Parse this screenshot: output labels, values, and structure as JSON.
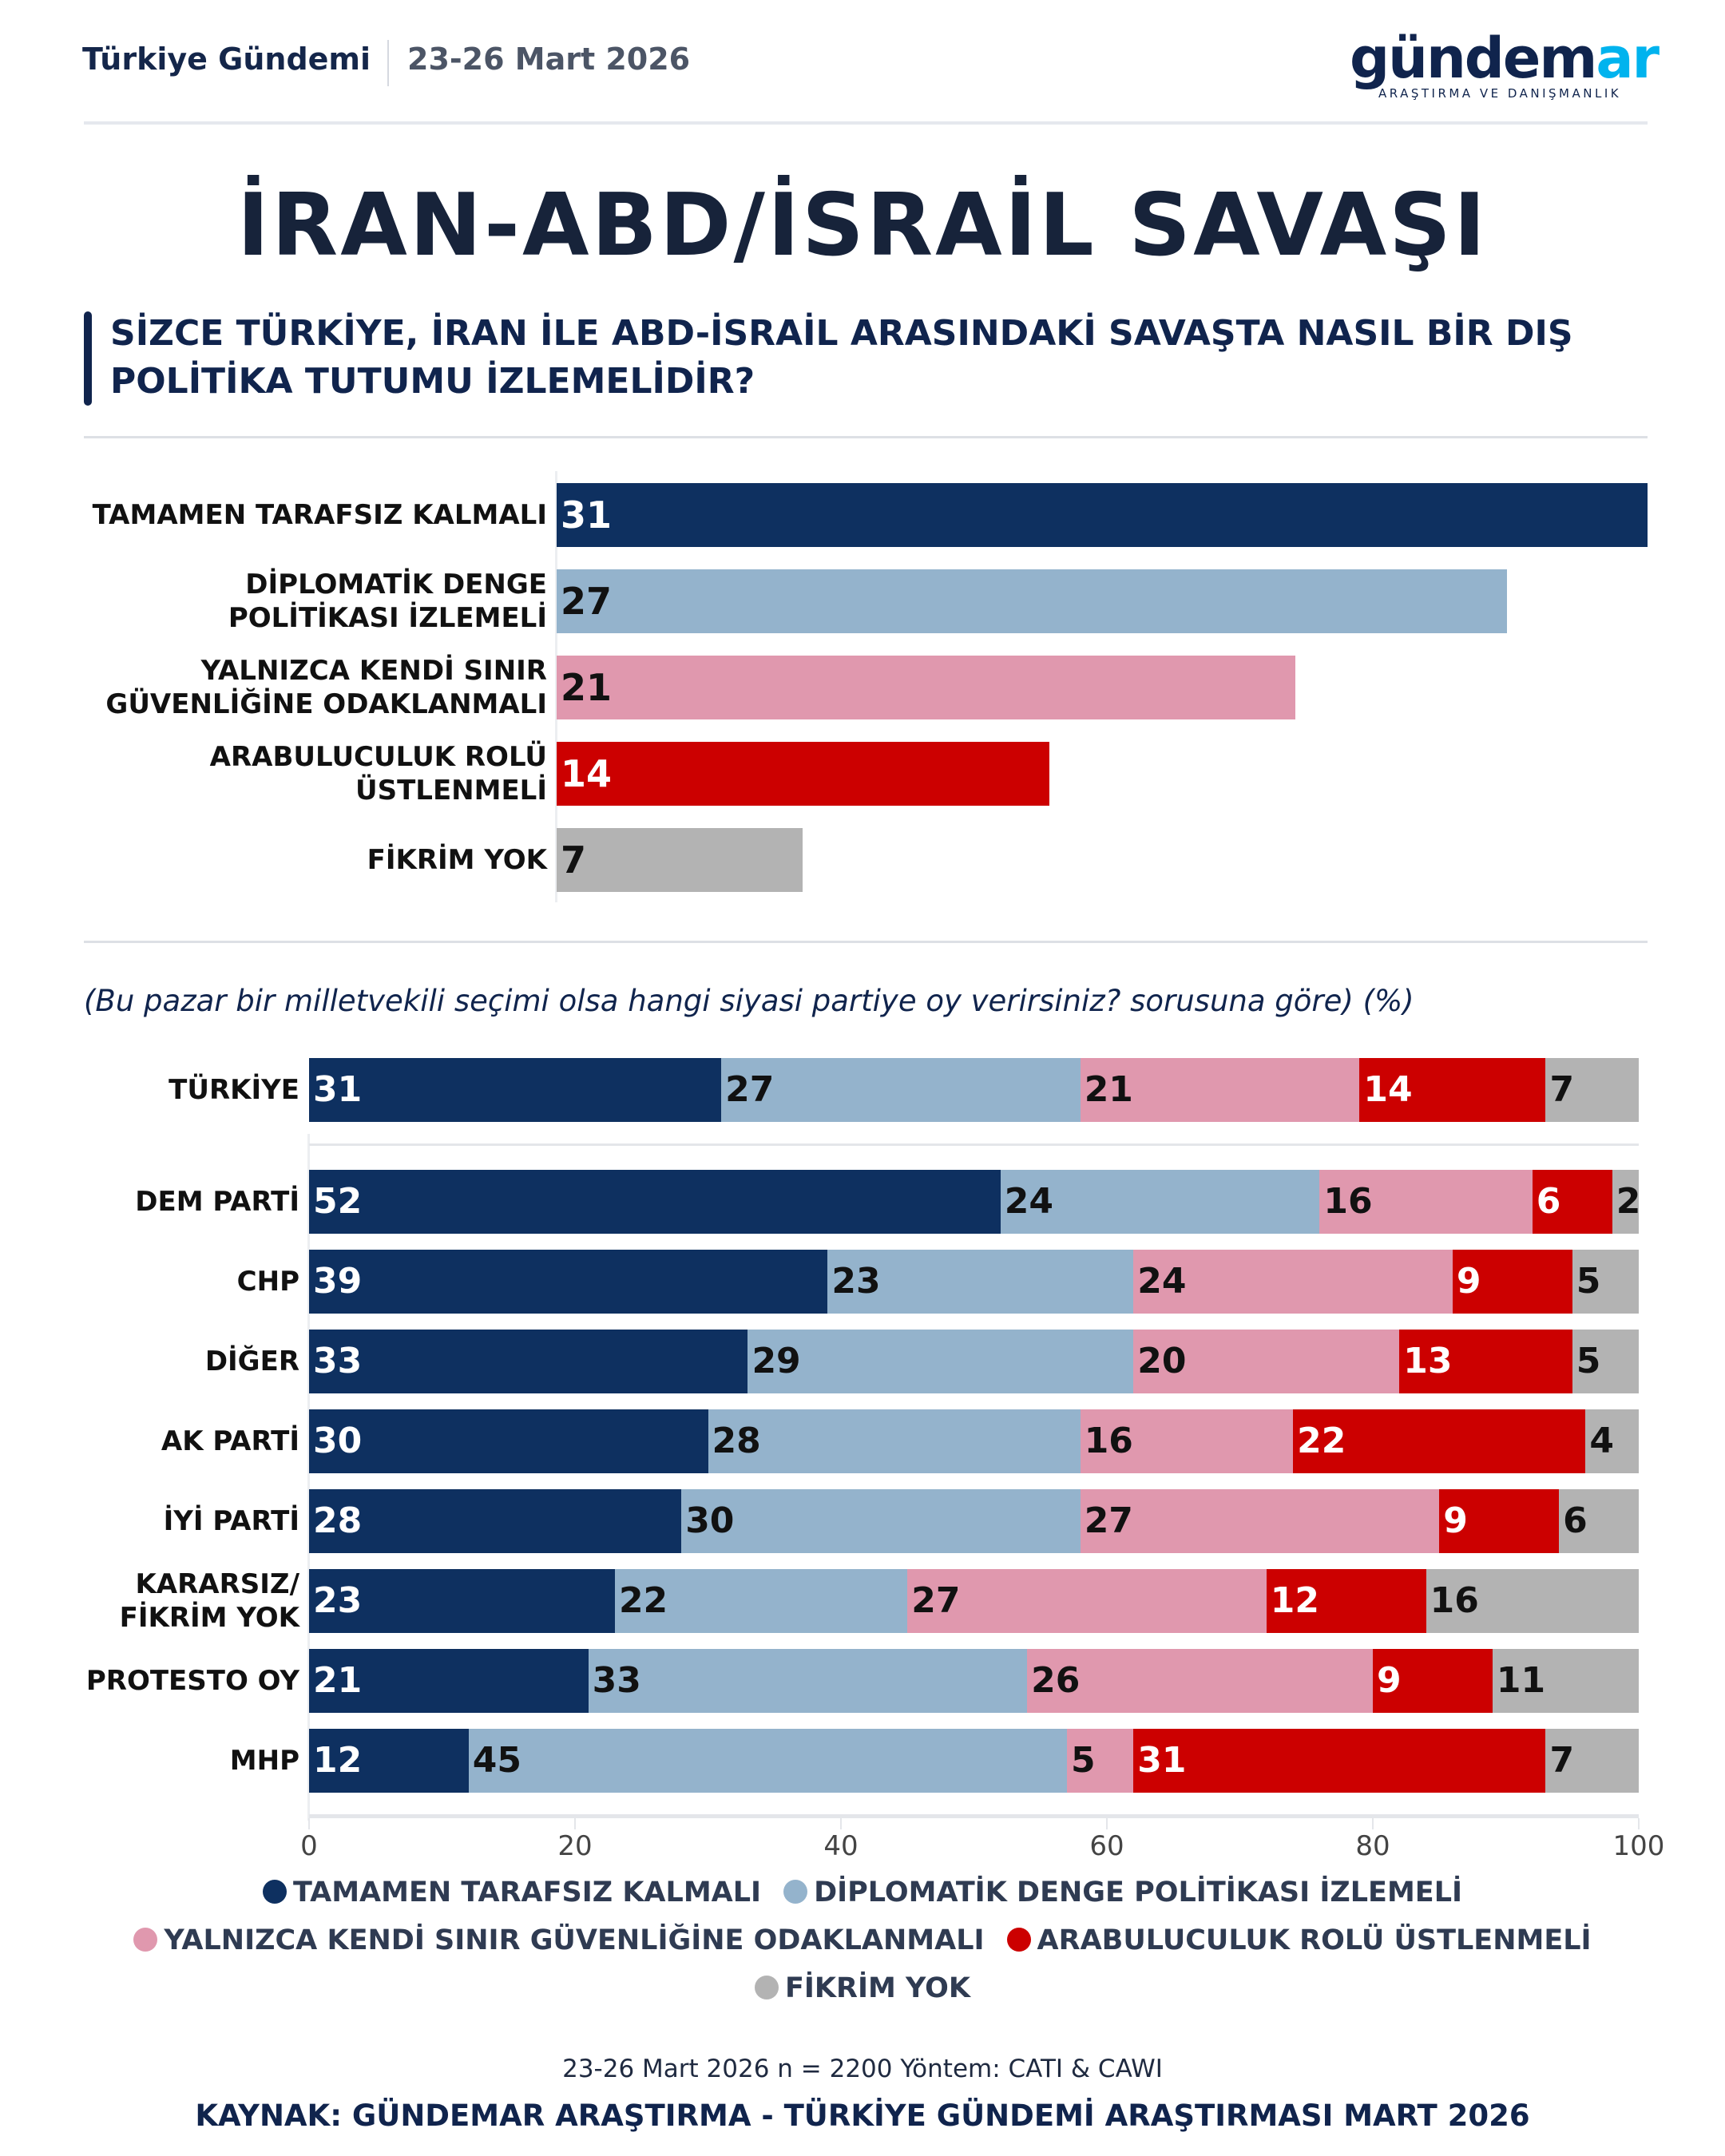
{
  "header": {
    "left_label": "Türkiye Gündemi",
    "date": "23-26 Mart 2026",
    "logo_main_dark": "gündem",
    "logo_main_accent": "ar",
    "logo_sub": "ARAŞTIRMA VE DANIŞMANLIK"
  },
  "title": "İRAN-ABD/İSRAİL SAVAŞI",
  "question": "SİZCE TÜRKİYE, İRAN İLE ABD-İSRAİL ARASINDAKİ SAVAŞTA NASIL BİR DIŞ POLİTİKA TUTUMU İZLEMELİDİR?",
  "colors": {
    "tarafsiz": "#0e3060",
    "diplomatik": "#94b3cc",
    "sinir": "#e098ae",
    "arabulucu": "#cc0000",
    "fikrim_yok": "#b3b3b3"
  },
  "chart_data": [
    {
      "type": "bar",
      "orientation": "horizontal",
      "categories": [
        "TAMAMEN TARAFSIZ KALMALI",
        "DİPLOMATİK DENGE POLİTİKASI İZLEMELİ",
        "YALNIZCA KENDİ SINIR GÜVENLİĞİNE ODAKLANMALI",
        "ARABULUCULUK ROLÜ ÜSTLENMELİ",
        "FİKRİM YOK"
      ],
      "label_lines": [
        [
          "TAMAMEN TARAFSIZ KALMALI"
        ],
        [
          "DİPLOMATİK DENGE",
          "POLİTİKASI İZLEMELİ"
        ],
        [
          "YALNIZCA KENDİ SINIR",
          "GÜVENLİĞİNE ODAKLANMALI"
        ],
        [
          "ARABULUCULUK ROLÜ",
          "ÜSTLENMELİ"
        ],
        [
          "FİKRİM YOK"
        ]
      ],
      "values": [
        31,
        27,
        21,
        14,
        7
      ],
      "colors": [
        "#0e3060",
        "#94b3cc",
        "#e098ae",
        "#cc0000",
        "#b3b3b3"
      ],
      "label_colors": [
        "#ffffff",
        "#111111",
        "#111111",
        "#ffffff",
        "#111111"
      ],
      "xlim": [
        0,
        31
      ]
    },
    {
      "type": "bar",
      "orientation": "horizontal",
      "stacked": true,
      "subtitle": "(Bu pazar bir milletvekili seçimi olsa hangi siyasi partiye oy verirsiniz? sorusuna göre) (%)",
      "categories": [
        "TÜRKİYE",
        "DEM PARTİ",
        "CHP",
        "DİĞER",
        "AK PARTİ",
        "İYİ PARTİ",
        "KARARSIZ/ FİKRİM YOK",
        "PROTESTO OY",
        "MHP"
      ],
      "label_lines": [
        [
          "TÜRKİYE"
        ],
        [
          "DEM PARTİ"
        ],
        [
          "CHP"
        ],
        [
          "DİĞER"
        ],
        [
          "AK PARTİ"
        ],
        [
          "İYİ PARTİ"
        ],
        [
          "KARARSIZ/",
          "FİKRİM YOK"
        ],
        [
          "PROTESTO OY"
        ],
        [
          "MHP"
        ]
      ],
      "series": [
        {
          "name": "TAMAMEN TARAFSIZ KALMALI",
          "color": "#0e3060",
          "label_color": "#ffffff",
          "values": [
            31,
            52,
            39,
            33,
            30,
            28,
            23,
            21,
            12
          ]
        },
        {
          "name": "DİPLOMATİK DENGE POLİTİKASI İZLEMELİ",
          "color": "#94b3cc",
          "label_color": "#111111",
          "values": [
            27,
            24,
            23,
            29,
            28,
            30,
            22,
            33,
            45
          ]
        },
        {
          "name": "YALNIZCA KENDİ SINIR GÜVENLİĞİNE ODAKLANMALI",
          "color": "#e098ae",
          "label_color": "#111111",
          "values": [
            21,
            16,
            24,
            20,
            16,
            27,
            27,
            26,
            5
          ]
        },
        {
          "name": "ARABULUCULUK ROLÜ ÜSTLENMELİ",
          "color": "#cc0000",
          "label_color": "#ffffff",
          "values": [
            14,
            6,
            9,
            13,
            22,
            9,
            12,
            9,
            31
          ]
        },
        {
          "name": "FİKRİM YOK",
          "color": "#b3b3b3",
          "label_color": "#111111",
          "values": [
            7,
            2,
            5,
            5,
            4,
            6,
            16,
            11,
            7
          ]
        }
      ],
      "xlim": [
        0,
        100
      ],
      "xticks": [
        0,
        20,
        40,
        60,
        80,
        100
      ],
      "legend_position": "bottom"
    }
  ],
  "legend": {
    "rows": [
      [
        {
          "label": "TAMAMEN TARAFSIZ KALMALI",
          "color": "#0e3060"
        },
        {
          "label": "DİPLOMATİK DENGE POLİTİKASI İZLEMELİ",
          "color": "#94b3cc"
        }
      ],
      [
        {
          "label": "YALNIZCA KENDİ SINIR GÜVENLİĞİNE ODAKLANMALI",
          "color": "#e098ae"
        },
        {
          "label": "ARABULUCULUK ROLÜ ÜSTLENMELİ",
          "color": "#cc0000"
        }
      ],
      [
        {
          "label": "FİKRİM YOK",
          "color": "#b3b3b3"
        }
      ]
    ]
  },
  "footer": {
    "method": "23-26 Mart 2026 n = 2200 Yöntem: CATI & CAWI",
    "source": "KAYNAK: GÜNDEMAR ARAŞTIRMA - TÜRKİYE GÜNDEMİ ARAŞTIRMASI MART 2026"
  }
}
